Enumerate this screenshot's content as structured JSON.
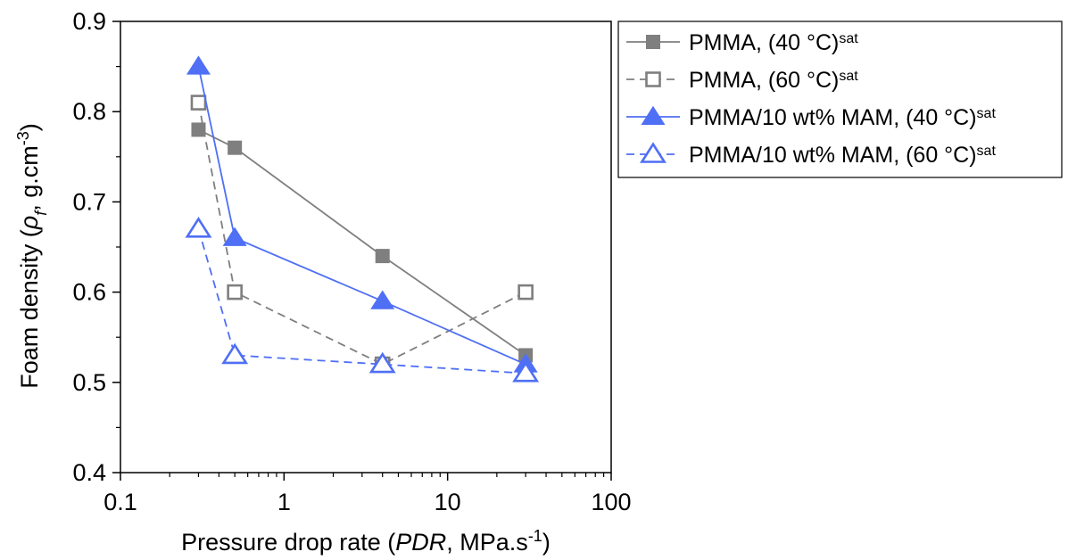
{
  "chart_data": {
    "type": "line",
    "xlabel_parts": {
      "prefix": "Pressure drop rate (",
      "italic": "PDR",
      "middle": ", MPa.s",
      "sup": "-1",
      "suffix": ")"
    },
    "ylabel_parts": {
      "prefix": "Foam density (",
      "italic": "ρ",
      "sub": "f",
      "middle": ", g.cm",
      "sup": "-3",
      "suffix": ")"
    },
    "xscale": "log",
    "xlim": [
      0.1,
      100
    ],
    "ylim": [
      0.4,
      0.9
    ],
    "xticks": [
      0.1,
      1,
      10,
      100
    ],
    "xtick_labels": [
      "0.1",
      "1",
      "10",
      "100"
    ],
    "yticks": [
      0.4,
      0.5,
      0.6,
      0.7,
      0.8,
      0.9
    ],
    "ytick_labels": [
      "0.4",
      "0.5",
      "0.6",
      "0.7",
      "0.8",
      "0.9"
    ],
    "grid": false,
    "legend_position": "outside-top-right",
    "series": [
      {
        "name": "PMMA, (40 °C)",
        "name_sup": "sat",
        "x": [
          0.3,
          0.5,
          4,
          30
        ],
        "y": [
          0.78,
          0.76,
          0.64,
          0.53
        ],
        "color": "#7f7f7f",
        "dashed": false,
        "marker": "square",
        "filled": true
      },
      {
        "name": "PMMA, (60 °C)",
        "name_sup": "sat",
        "x": [
          0.3,
          0.5,
          4,
          30
        ],
        "y": [
          0.81,
          0.6,
          0.52,
          0.6
        ],
        "color": "#7f7f7f",
        "dashed": true,
        "marker": "square",
        "filled": false
      },
      {
        "name": "PMMA/10 wt% MAM, (40 °C)",
        "name_sup": "sat",
        "x": [
          0.3,
          0.5,
          4,
          30
        ],
        "y": [
          0.85,
          0.66,
          0.59,
          0.52
        ],
        "color": "#4f6ff5",
        "dashed": false,
        "marker": "triangle",
        "filled": true
      },
      {
        "name": "PMMA/10 wt% MAM, (60 °C)",
        "name_sup": "sat",
        "x": [
          0.3,
          0.5,
          4,
          30
        ],
        "y": [
          0.67,
          0.53,
          0.52,
          0.51
        ],
        "color": "#4f6ff5",
        "dashed": true,
        "marker": "triangle",
        "filled": false
      }
    ]
  }
}
